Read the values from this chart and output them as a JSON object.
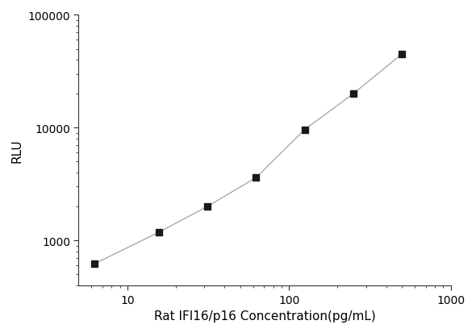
{
  "x_values": [
    6.25,
    15.625,
    31.25,
    62.5,
    125,
    250,
    500
  ],
  "y_values": [
    620,
    1180,
    2000,
    3600,
    9600,
    20000,
    45000
  ],
  "xlabel": "Rat IFI16/p16 Concentration(pg/mL)",
  "ylabel": "RLU",
  "xlim_log": [
    0.699,
    3.0
  ],
  "ylim_log": [
    2.6,
    5.0
  ],
  "x_ticks": [
    10,
    100,
    1000
  ],
  "x_tick_labels": [
    "10",
    "100",
    "1000"
  ],
  "y_ticks": [
    1000,
    10000,
    100000
  ],
  "y_tick_labels": [
    "1000",
    "10000",
    "100000"
  ],
  "line_color": "#aaaaaa",
  "marker_color": "#1a1a1a",
  "marker": "s",
  "marker_size": 6,
  "background_color": "#ffffff",
  "xlabel_fontsize": 11,
  "ylabel_fontsize": 11,
  "tick_fontsize": 10,
  "figsize": [
    5.9,
    4.14
  ],
  "dpi": 100
}
